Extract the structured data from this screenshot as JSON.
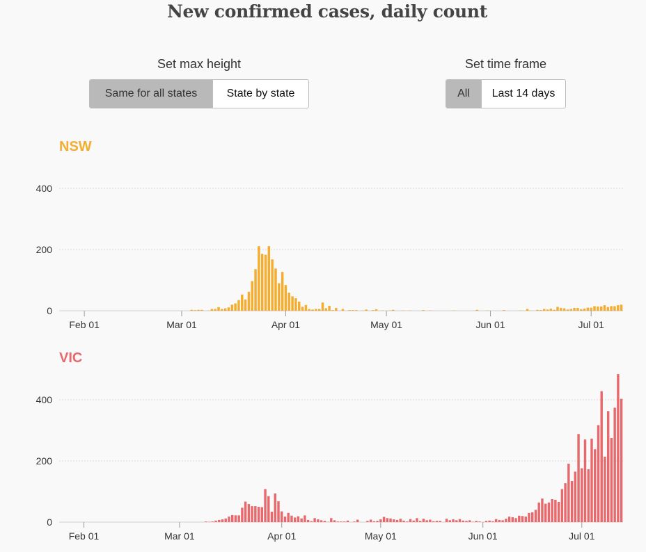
{
  "title": "New confirmed cases, daily count",
  "controls": {
    "max_height": {
      "label": "Set max height",
      "options": [
        "Same for all states",
        "State by state"
      ],
      "selected": "Same for all states"
    },
    "time_frame": {
      "label": "Set time frame",
      "options": [
        "All",
        "Last 14 days"
      ],
      "selected": "All"
    }
  },
  "colors": {
    "nsw": "#f5ad2f",
    "vic": "#e8686b",
    "grid": "#d6d6d6",
    "axis": "#9a9a9a"
  },
  "chart_data": [
    {
      "type": "bar",
      "title": "NSW",
      "x_start": "2020-01-25",
      "x_ticks": [
        "Feb 01",
        "Mar 01",
        "Apr 01",
        "May 01",
        "Jun 01",
        "Jul 01"
      ],
      "y_ticks": [
        0,
        200,
        400
      ],
      "ylim": [
        0,
        400
      ],
      "values": [
        0,
        0,
        0,
        0,
        0,
        0,
        0,
        0,
        0,
        0,
        0,
        0,
        0,
        0,
        0,
        0,
        0,
        0,
        0,
        0,
        0,
        0,
        0,
        0,
        0,
        0,
        0,
        0,
        0,
        0,
        0,
        0,
        0,
        0,
        0,
        0,
        0,
        0,
        0,
        3,
        2,
        3,
        3,
        0,
        1,
        6,
        6,
        12,
        6,
        8,
        11,
        20,
        24,
        35,
        53,
        37,
        62,
        97,
        136,
        211,
        186,
        183,
        211,
        168,
        138,
        90,
        127,
        84,
        59,
        47,
        41,
        30,
        13,
        19,
        6,
        4,
        6,
        6,
        27,
        8,
        16,
        2,
        9,
        0,
        6,
        0,
        2,
        2,
        2,
        0,
        1,
        4,
        0,
        2,
        5,
        0,
        1,
        0,
        1,
        3,
        0,
        0,
        1,
        0,
        1,
        0,
        0,
        0,
        2,
        0,
        1,
        0,
        0,
        0,
        0,
        0,
        0,
        1,
        0,
        0,
        0,
        0,
        0,
        0,
        3,
        0,
        0,
        1,
        0,
        0,
        0,
        0,
        2,
        0,
        0,
        0,
        0,
        1,
        0,
        6,
        1,
        0,
        3,
        2,
        6,
        4,
        7,
        3,
        13,
        9,
        8,
        4,
        6,
        9,
        9,
        5,
        7,
        10,
        10,
        15,
        14,
        14,
        18,
        12,
        15,
        15,
        18,
        20
      ]
    },
    {
      "type": "bar",
      "title": "VIC",
      "x_start": "2020-01-25",
      "x_ticks": [
        "Feb 01",
        "Mar 01",
        "Apr 01",
        "May 01",
        "Jun 01",
        "Jul 01"
      ],
      "y_ticks": [
        0,
        200,
        400
      ],
      "ylim": [
        0,
        400
      ],
      "values": [
        0,
        0,
        0,
        0,
        0,
        0,
        0,
        0,
        0,
        0,
        0,
        0,
        0,
        0,
        0,
        0,
        0,
        0,
        0,
        0,
        0,
        0,
        0,
        0,
        0,
        0,
        0,
        0,
        0,
        0,
        0,
        0,
        0,
        0,
        0,
        0,
        0,
        0,
        0,
        0,
        0,
        0,
        0,
        0,
        2,
        1,
        2,
        5,
        7,
        9,
        12,
        18,
        23,
        22,
        22,
        47,
        67,
        59,
        52,
        52,
        50,
        49,
        108,
        85,
        34,
        94,
        68,
        35,
        18,
        30,
        21,
        15,
        19,
        12,
        22,
        7,
        3,
        13,
        9,
        6,
        4,
        1,
        13,
        6,
        2,
        2,
        2,
        5,
        0,
        2,
        8,
        0,
        0,
        4,
        8,
        3,
        4,
        9,
        17,
        13,
        12,
        9,
        7,
        11,
        5,
        2,
        10,
        5,
        13,
        4,
        11,
        6,
        8,
        3,
        4,
        4,
        0,
        11,
        6,
        9,
        6,
        10,
        5,
        4,
        6,
        1,
        4,
        2,
        0,
        4,
        5,
        3,
        10,
        7,
        6,
        11,
        18,
        16,
        13,
        21,
        20,
        18,
        30,
        32,
        40,
        64,
        77,
        60,
        64,
        75,
        73,
        66,
        108,
        127,
        191,
        134,
        165,
        288,
        176,
        270,
        173,
        273,
        238,
        317,
        428,
        214,
        363,
        275,
        374,
        484,
        403
      ]
    }
  ]
}
